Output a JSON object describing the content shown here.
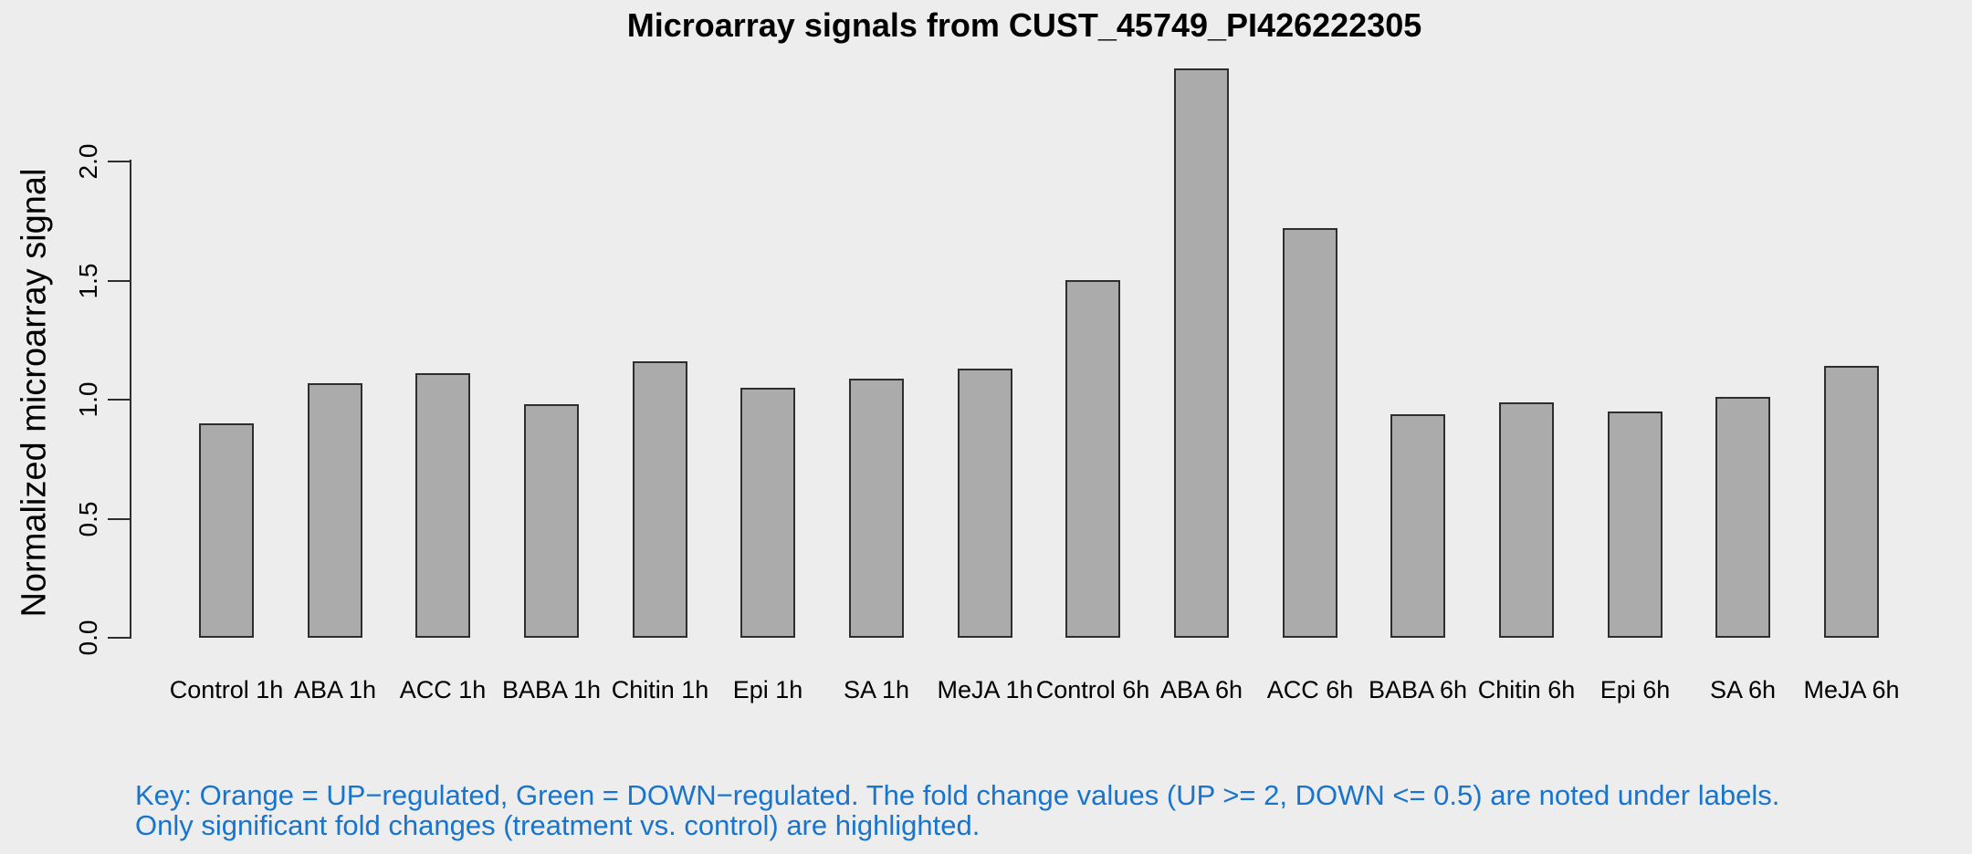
{
  "title": "Microarray signals from CUST_45749_PI426222305",
  "y_axis": {
    "label": "Normalized microarray signal",
    "tick_labels": [
      "0.0",
      "0.5",
      "1.0",
      "1.5",
      "2.0"
    ]
  },
  "key": {
    "line1": "Key: Orange = UP−regulated, Green = DOWN−regulated. The fold change values (UP >= 2, DOWN <= 0.5) are noted under labels.",
    "line2": "Only significant fold changes (treatment vs. control) are highlighted.",
    "text_color": "#1874CD",
    "up_color_name": "Orange",
    "down_color_name": "Green"
  },
  "colors": {
    "background": "#EDEDED",
    "bar_fill": "#ABABAB",
    "bar_border": "#2E2E2E",
    "axis": "#2E2E2E",
    "title_text": "#000000"
  },
  "chart_data": {
    "type": "bar",
    "title": "Microarray signals from CUST_45749_PI426222305",
    "xlabel": "",
    "ylabel": "Normalized microarray signal",
    "categories": [
      "Control 1h",
      "ABA 1h",
      "ACC 1h",
      "BABA 1h",
      "Chitin 1h",
      "Epi 1h",
      "SA 1h",
      "MeJA 1h",
      "Control 6h",
      "ABA 6h",
      "ACC 6h",
      "BABA 6h",
      "Chitin 6h",
      "Epi 6h",
      "SA 6h",
      "MeJA 6h"
    ],
    "values": [
      0.9,
      1.07,
      1.11,
      0.98,
      1.16,
      1.05,
      1.09,
      1.13,
      1.5,
      2.39,
      1.72,
      0.94,
      0.99,
      0.95,
      1.01,
      1.14
    ],
    "yticks": [
      0.0,
      0.5,
      1.0,
      1.5,
      2.0
    ],
    "ylim": [
      0,
      2.4
    ],
    "grid": false,
    "legend_position": "none",
    "bar_color": "#ABABAB"
  }
}
